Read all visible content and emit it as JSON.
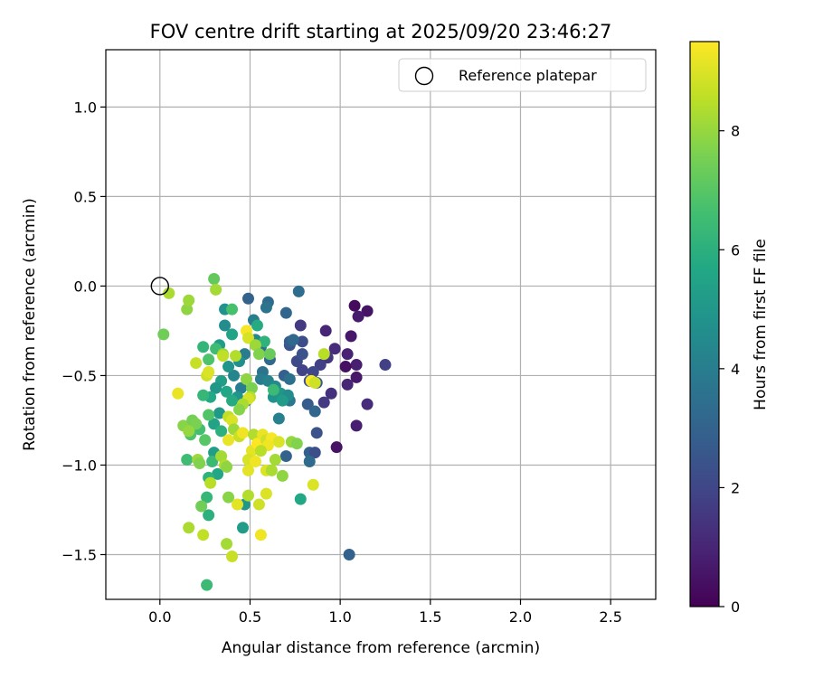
{
  "chart_data": {
    "type": "scatter",
    "title": "FOV centre drift starting at 2025/09/20 23:46:27",
    "xlabel": "Angular distance from reference (arcmin)",
    "ylabel": "Rotation from reference (arcmin)",
    "xlim": [
      -0.3,
      2.75
    ],
    "ylim": [
      -1.75,
      1.32
    ],
    "xticks": [
      0.0,
      0.5,
      1.0,
      1.5,
      2.0,
      2.5
    ],
    "xtick_labels": [
      "0.0",
      "0.5",
      "1.0",
      "1.5",
      "2.0",
      "2.5"
    ],
    "yticks": [
      1.0,
      0.5,
      0.0,
      -0.5,
      -1.0,
      -1.5
    ],
    "ytick_labels": [
      "1.0",
      "0.5",
      "0.0",
      "−0.5",
      "−1.0",
      "−1.5"
    ],
    "grid": true,
    "legend": {
      "position": "top-right",
      "entries": [
        "Reference platepar"
      ]
    },
    "reference_point": {
      "x": 0.0,
      "y": 0.0,
      "label": "Reference platepar"
    },
    "colorbar": {
      "label": "Hours from first FF file",
      "range": [
        0,
        9.5
      ],
      "ticks": [
        0,
        2,
        4,
        6,
        8
      ],
      "tick_labels": [
        "0",
        "2",
        "4",
        "6",
        "8"
      ],
      "colormap": "viridis"
    },
    "points": [
      [
        1.08,
        -0.11,
        0.3
      ],
      [
        1.15,
        -0.14,
        0.5
      ],
      [
        1.1,
        -0.17,
        0.7
      ],
      [
        1.06,
        -0.28,
        0.6
      ],
      [
        1.04,
        -0.38,
        0.9
      ],
      [
        1.09,
        -0.44,
        0.8
      ],
      [
        1.03,
        -0.45,
        0.4
      ],
      [
        1.09,
        -0.51,
        0.6
      ],
      [
        1.04,
        -0.55,
        1.0
      ],
      [
        1.25,
        -0.44,
        1.8
      ],
      [
        1.15,
        -0.66,
        1.2
      ],
      [
        1.09,
        -0.78,
        0.8
      ],
      [
        0.98,
        -0.9,
        0.5
      ],
      [
        0.97,
        -0.35,
        1.2
      ],
      [
        0.92,
        -0.25,
        1.0
      ],
      [
        0.95,
        -0.6,
        1.3
      ],
      [
        0.91,
        -0.65,
        1.6
      ],
      [
        0.93,
        -0.4,
        1.5
      ],
      [
        0.89,
        -0.44,
        1.8
      ],
      [
        0.85,
        -0.48,
        2.0
      ],
      [
        0.83,
        -0.53,
        2.3
      ],
      [
        0.87,
        -0.54,
        2.6
      ],
      [
        0.79,
        -0.47,
        1.9
      ],
      [
        0.76,
        -0.42,
        2.1
      ],
      [
        0.79,
        -0.38,
        2.4
      ],
      [
        0.78,
        -0.22,
        1.6
      ],
      [
        0.79,
        -0.31,
        2.2
      ],
      [
        0.72,
        -0.33,
        2.5
      ],
      [
        0.77,
        -0.03,
        3.4
      ],
      [
        0.7,
        -0.15,
        3.1
      ],
      [
        0.6,
        -0.09,
        3.3
      ],
      [
        0.59,
        -0.12,
        3.6
      ],
      [
        0.49,
        -0.07,
        3.0
      ],
      [
        0.72,
        -0.31,
        2.8
      ],
      [
        0.74,
        -0.3,
        3.2
      ],
      [
        0.69,
        -0.5,
        2.9
      ],
      [
        0.72,
        -0.52,
        3.5
      ],
      [
        0.72,
        -0.64,
        3.8
      ],
      [
        0.66,
        -0.74,
        4.1
      ],
      [
        0.7,
        -0.95,
        3.0
      ],
      [
        0.82,
        -0.66,
        2.7
      ],
      [
        0.86,
        -0.7,
        3.1
      ],
      [
        0.87,
        -0.82,
        2.4
      ],
      [
        0.83,
        -0.93,
        2.9
      ],
      [
        0.86,
        -0.93,
        2.3
      ],
      [
        0.83,
        -0.98,
        3.3
      ],
      [
        1.05,
        -1.5,
        3.0
      ],
      [
        0.52,
        -0.19,
        4.0
      ],
      [
        0.56,
        -0.34,
        3.5
      ],
      [
        0.61,
        -0.41,
        3.2
      ],
      [
        0.57,
        -0.48,
        3.6
      ],
      [
        0.56,
        -0.52,
        3.9
      ],
      [
        0.6,
        -0.53,
        4.2
      ],
      [
        0.64,
        -0.56,
        4.5
      ],
      [
        0.63,
        -0.62,
        4.8
      ],
      [
        0.67,
        -0.6,
        5.0
      ],
      [
        0.71,
        -0.61,
        4.6
      ],
      [
        0.68,
        -0.64,
        5.2
      ],
      [
        0.53,
        -0.3,
        4.4
      ],
      [
        0.47,
        -0.38,
        3.9
      ],
      [
        0.44,
        -0.42,
        4.7
      ],
      [
        0.41,
        -0.5,
        4.3
      ],
      [
        0.45,
        -0.57,
        4.0
      ],
      [
        0.43,
        -0.62,
        4.9
      ],
      [
        0.48,
        -0.64,
        4.5
      ],
      [
        0.36,
        -0.13,
        4.8
      ],
      [
        0.36,
        -0.22,
        4.6
      ],
      [
        0.33,
        -0.33,
        5.2
      ],
      [
        0.4,
        -0.27,
        5.5
      ],
      [
        0.38,
        -0.45,
        4.9
      ],
      [
        0.34,
        -0.53,
        5.3
      ],
      [
        0.31,
        -0.57,
        5.0
      ],
      [
        0.37,
        -0.59,
        5.6
      ],
      [
        0.4,
        -0.64,
        5.8
      ],
      [
        0.28,
        -0.62,
        5.7
      ],
      [
        0.33,
        -0.71,
        5.1
      ],
      [
        0.3,
        -0.77,
        5.5
      ],
      [
        0.34,
        -0.81,
        6.0
      ],
      [
        0.3,
        -0.93,
        5.3
      ],
      [
        0.32,
        -1.05,
        5.6
      ],
      [
        0.47,
        -1.22,
        5.0
      ],
      [
        0.46,
        -1.35,
        5.2
      ],
      [
        0.78,
        -1.19,
        5.7
      ],
      [
        0.54,
        -0.22,
        5.8
      ],
      [
        0.58,
        -0.31,
        6.1
      ],
      [
        0.63,
        -0.58,
        6.4
      ],
      [
        0.4,
        -0.13,
        6.7
      ],
      [
        0.31,
        -0.35,
        6.5
      ],
      [
        0.24,
        -0.34,
        6.2
      ],
      [
        0.27,
        -0.41,
        6.8
      ],
      [
        0.24,
        -0.61,
        6.3
      ],
      [
        0.27,
        -0.72,
        6.9
      ],
      [
        0.22,
        -0.8,
        6.6
      ],
      [
        0.25,
        -0.86,
        7.0
      ],
      [
        0.29,
        -0.98,
        6.4
      ],
      [
        0.27,
        -1.07,
        6.1
      ],
      [
        0.26,
        -1.18,
        6.3
      ],
      [
        0.27,
        -1.28,
        6.0
      ],
      [
        0.26,
        -1.67,
        6.4
      ],
      [
        0.15,
        -0.97,
        6.5
      ],
      [
        0.17,
        -0.83,
        6.8
      ],
      [
        0.3,
        0.04,
        7.2
      ],
      [
        0.31,
        -0.02,
        8.2
      ],
      [
        0.02,
        -0.27,
        7.4
      ],
      [
        0.05,
        -0.04,
        8.3
      ],
      [
        0.15,
        -0.13,
        7.9
      ],
      [
        0.16,
        -0.08,
        8.1
      ],
      [
        0.35,
        -0.38,
        8.0
      ],
      [
        0.42,
        -0.39,
        8.4
      ],
      [
        0.35,
        -0.39,
        8.6
      ],
      [
        0.2,
        -0.43,
        8.7
      ],
      [
        0.26,
        -0.5,
        8.8
      ],
      [
        0.27,
        -0.48,
        9.0
      ],
      [
        0.1,
        -0.6,
        9.2
      ],
      [
        0.13,
        -0.78,
        7.8
      ],
      [
        0.18,
        -0.75,
        7.5
      ],
      [
        0.2,
        -0.77,
        7.6
      ],
      [
        0.16,
        -0.81,
        8.0
      ],
      [
        0.21,
        -0.97,
        8.1
      ],
      [
        0.22,
        -0.99,
        7.7
      ],
      [
        0.34,
        -0.95,
        8.2
      ],
      [
        0.36,
        -1.0,
        8.4
      ],
      [
        0.37,
        -1.01,
        7.9
      ],
      [
        0.28,
        -1.1,
        8.5
      ],
      [
        0.23,
        -1.23,
        7.4
      ],
      [
        0.38,
        -1.18,
        7.8
      ],
      [
        0.16,
        -1.35,
        8.3
      ],
      [
        0.24,
        -1.39,
        8.6
      ],
      [
        0.37,
        -1.44,
        8.2
      ],
      [
        0.4,
        -1.51,
        8.7
      ],
      [
        0.43,
        -1.22,
        9.1
      ],
      [
        0.49,
        -1.17,
        8.4
      ],
      [
        0.55,
        -1.22,
        8.8
      ],
      [
        0.59,
        -1.16,
        9.0
      ],
      [
        0.56,
        -1.39,
        9.3
      ],
      [
        0.48,
        -0.25,
        9.4
      ],
      [
        0.49,
        -0.29,
        8.9
      ],
      [
        0.53,
        -0.33,
        8.1
      ],
      [
        0.55,
        -0.38,
        7.7
      ],
      [
        0.61,
        -0.38,
        7.3
      ],
      [
        0.48,
        -0.52,
        7.9
      ],
      [
        0.51,
        -0.57,
        7.6
      ],
      [
        0.5,
        -0.62,
        8.5
      ],
      [
        0.49,
        -0.63,
        8.9
      ],
      [
        0.46,
        -0.66,
        8.3
      ],
      [
        0.44,
        -0.69,
        7.8
      ],
      [
        0.38,
        -0.73,
        8.6
      ],
      [
        0.4,
        -0.75,
        9.0
      ],
      [
        0.41,
        -0.8,
        8.1
      ],
      [
        0.38,
        -0.86,
        9.2
      ],
      [
        0.44,
        -0.84,
        8.7
      ],
      [
        0.46,
        -0.82,
        9.3
      ],
      [
        0.52,
        -0.83,
        8.4
      ],
      [
        0.51,
        -0.92,
        9.1
      ],
      [
        0.54,
        -0.88,
        9.5
      ],
      [
        0.57,
        -0.83,
        9.2
      ],
      [
        0.59,
        -0.86,
        8.8
      ],
      [
        0.62,
        -0.85,
        9.4
      ],
      [
        0.66,
        -0.87,
        9.0
      ],
      [
        0.6,
        -0.89,
        9.3
      ],
      [
        0.56,
        -0.92,
        8.5
      ],
      [
        0.49,
        -0.97,
        8.9
      ],
      [
        0.53,
        -0.98,
        9.3
      ],
      [
        0.49,
        -1.03,
        9.1
      ],
      [
        0.59,
        -1.03,
        9.0
      ],
      [
        0.62,
        -1.03,
        8.3
      ],
      [
        0.68,
        -1.06,
        7.9
      ],
      [
        0.64,
        -0.97,
        8.2
      ],
      [
        0.73,
        -0.87,
        8.0
      ],
      [
        0.76,
        -0.88,
        7.7
      ],
      [
        0.84,
        -0.53,
        9.4
      ],
      [
        0.86,
        -0.54,
        8.8
      ],
      [
        0.91,
        -0.38,
        8.5
      ],
      [
        0.85,
        -1.11,
        9.0
      ],
      [
        0.0,
        0.0,
        -1
      ]
    ]
  }
}
